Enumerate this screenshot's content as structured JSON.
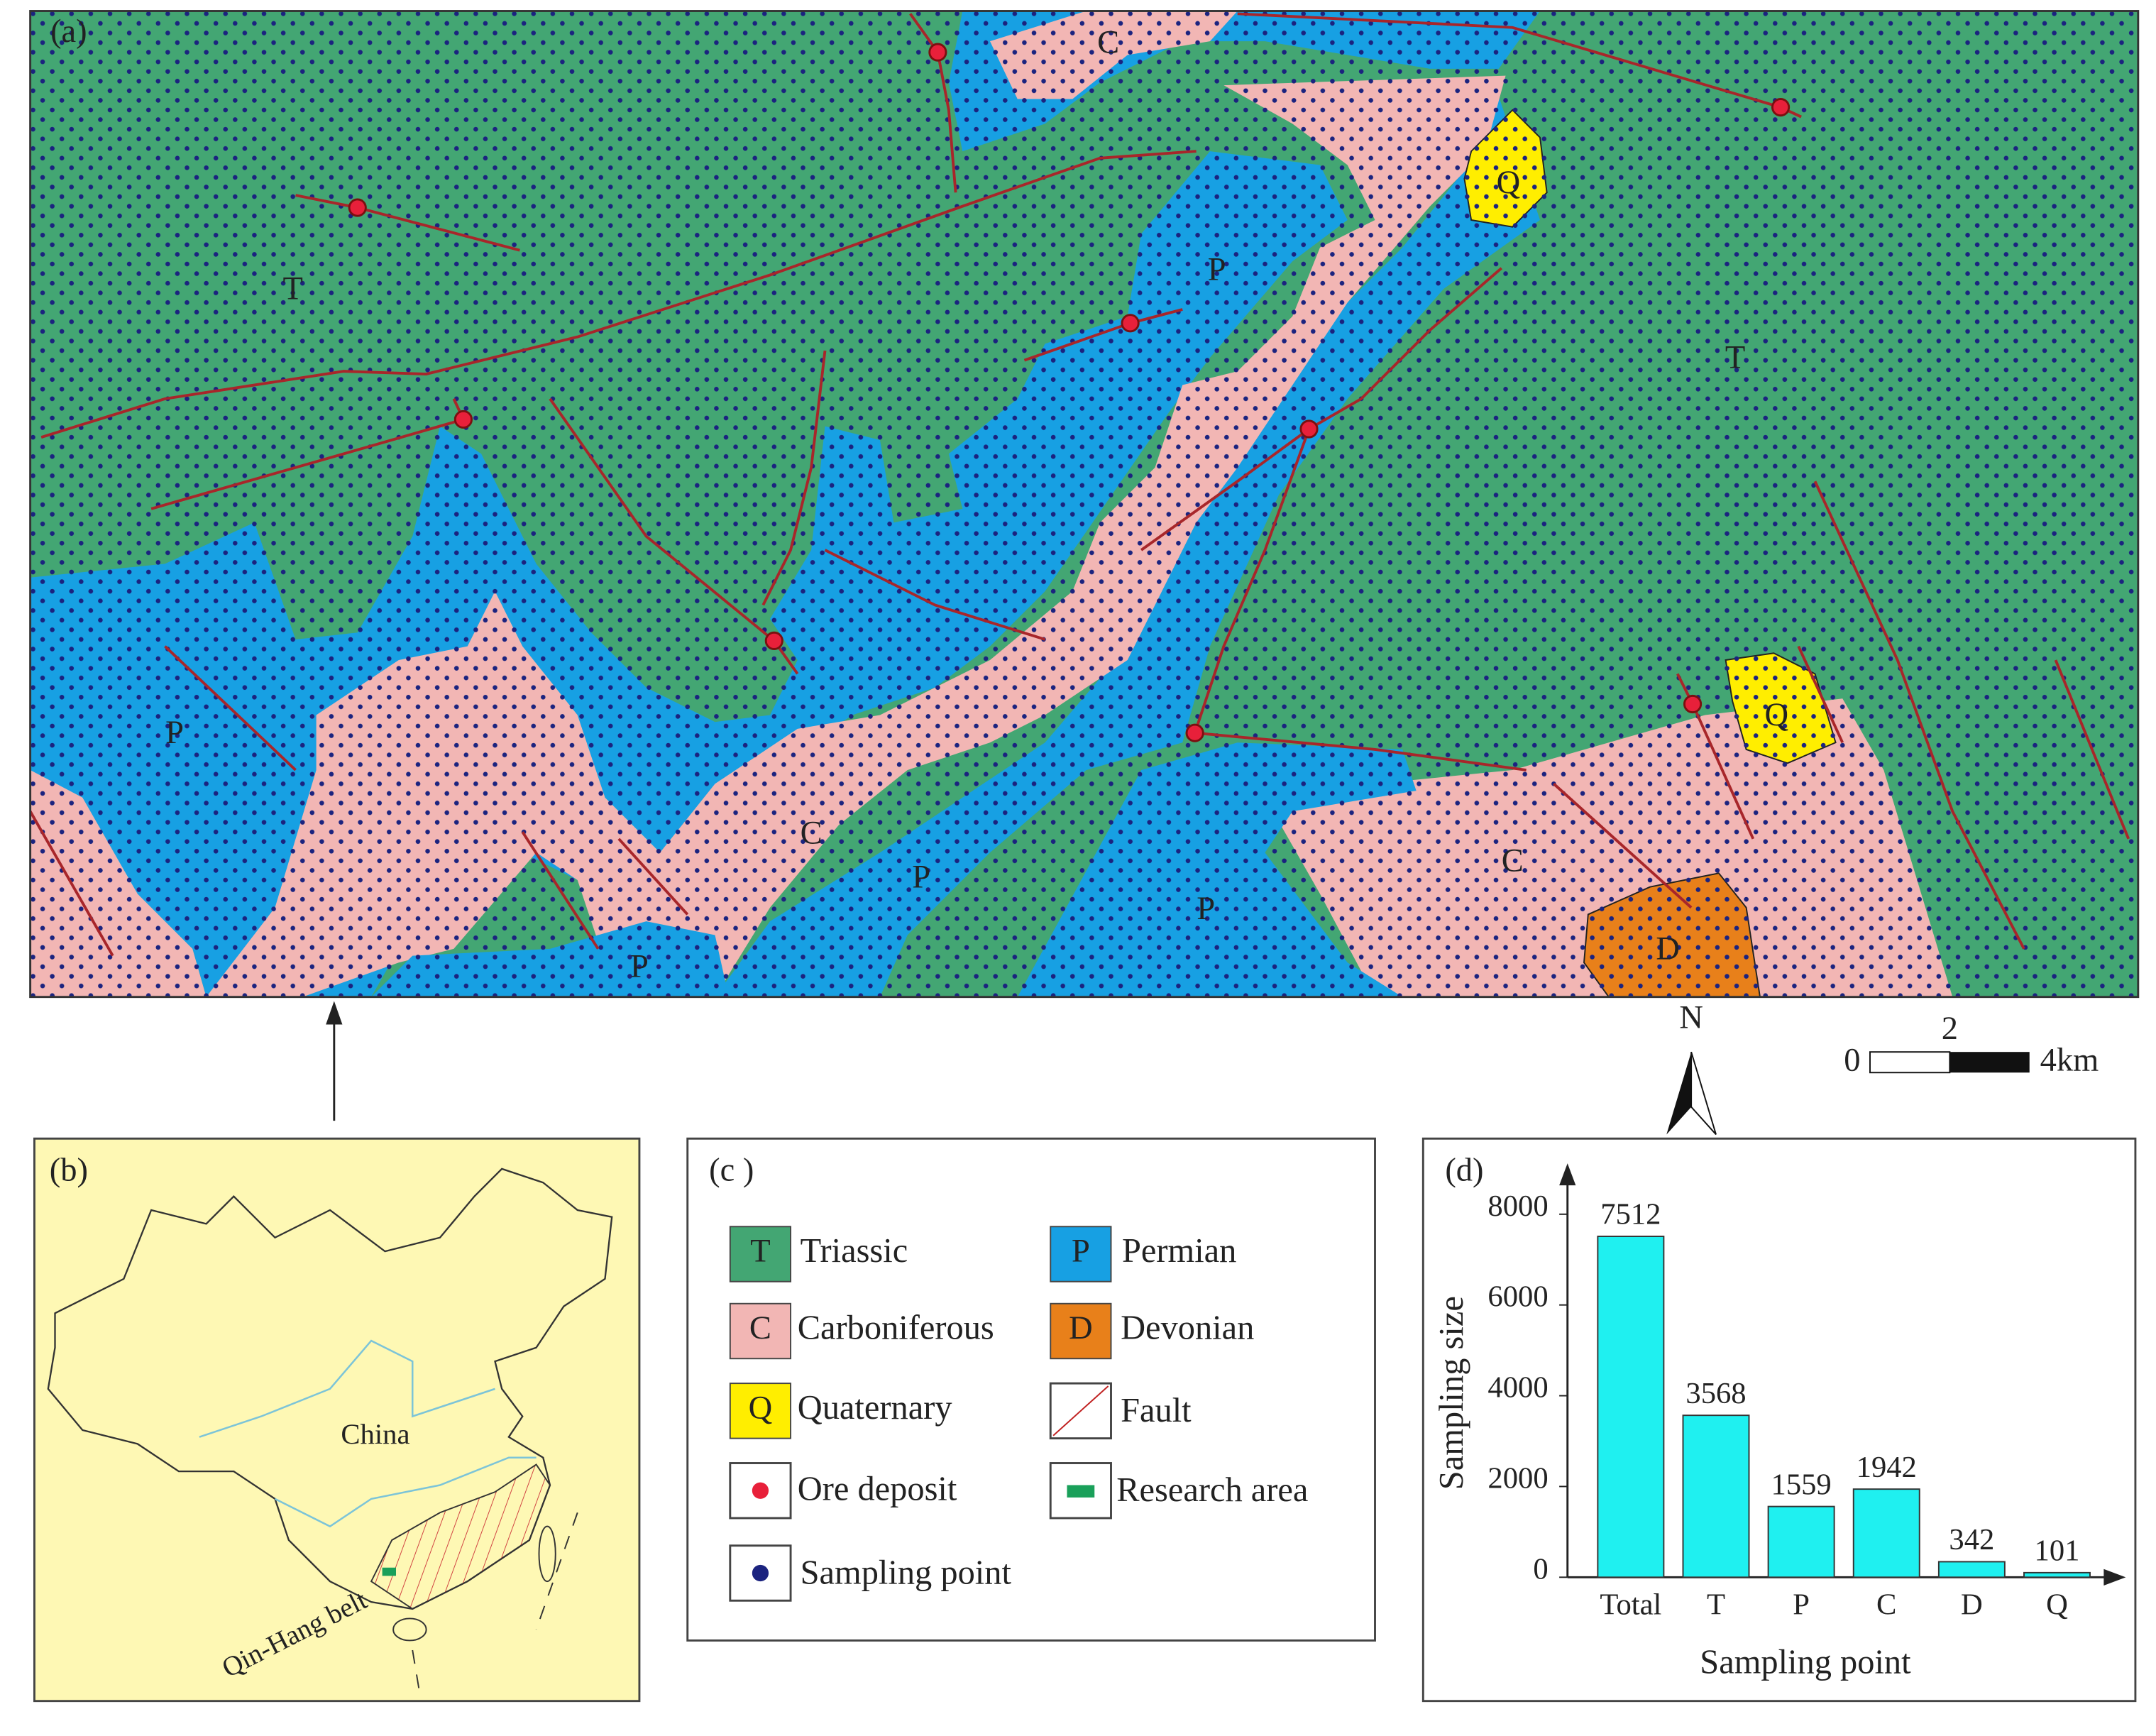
{
  "map": {
    "panel": "(a)",
    "labels": [
      "C",
      "Q",
      "P",
      "T",
      "T",
      "P",
      "Q",
      "C",
      "P",
      "C",
      "P",
      "D",
      "P"
    ],
    "north": "N",
    "scale": [
      "0",
      "2",
      "4km"
    ]
  },
  "inset": {
    "panel": "(b)",
    "country": "China",
    "belt": "Qin-Hang belt"
  },
  "legend": {
    "panel": "(c )",
    "items": [
      {
        "symbol": "T",
        "label": "Triassic"
      },
      {
        "symbol": "P",
        "label": "Permian"
      },
      {
        "symbol": "C",
        "label": "Carboniferous"
      },
      {
        "symbol": "D",
        "label": "Devonian"
      },
      {
        "symbol": "Q",
        "label": "Quaternary"
      },
      {
        "label": "Fault"
      },
      {
        "label": "Ore deposit"
      },
      {
        "label": "Research area"
      },
      {
        "label": "Sampling point"
      }
    ]
  },
  "chart_data": {
    "type": "bar",
    "label": "(d)",
    "x_label": "Sampling point",
    "y_label": "Sampling size",
    "categories": [
      "Total",
      "T",
      "P",
      "C",
      "D",
      "Q"
    ],
    "values": [
      7512,
      3568,
      1559,
      1942,
      342,
      101
    ],
    "color": "#1ff0f0",
    "ylim": [
      0,
      8000
    ],
    "yticks": [
      0,
      2000,
      4000,
      6000,
      8000
    ]
  }
}
